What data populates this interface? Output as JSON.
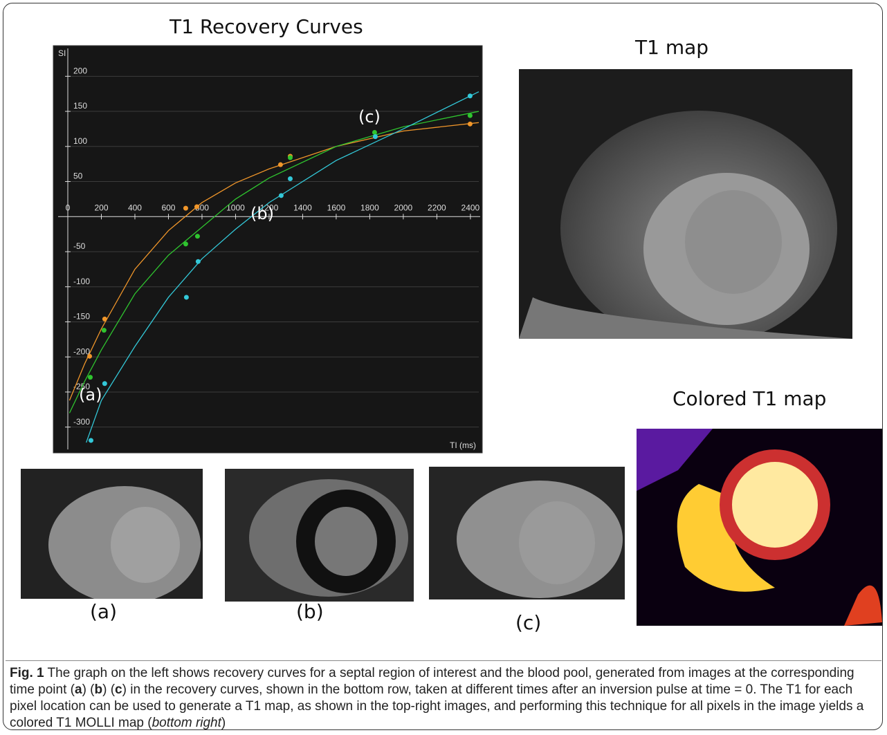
{
  "chart_data": {
    "type": "scatter",
    "title": "T1 Recovery Curves",
    "y_label": "SI",
    "x_label": "TI (ms)",
    "xlim": [
      0,
      2450
    ],
    "ylim": [
      -322,
      222
    ],
    "xticks": [
      0,
      200,
      400,
      600,
      800,
      1000,
      1200,
      1400,
      1600,
      1800,
      2000,
      2200,
      2400
    ],
    "yticks": [
      -300,
      -250,
      -200,
      -150,
      -100,
      -50,
      50,
      100,
      150,
      200
    ],
    "grid": true,
    "annotations": [
      "(a)",
      "(b)",
      "(c)"
    ],
    "series": [
      {
        "color": "#f0962a",
        "x": [
          130,
          220,
          703,
          769,
          1268,
          1326,
          2398
        ],
        "values": [
          -199,
          -146,
          12,
          14,
          74,
          86,
          132
        ],
        "fit_x": [
          10,
          100,
          200,
          400,
          600,
          800,
          1000,
          1200,
          1600,
          2000,
          2450
        ],
        "fit_values": [
          -262,
          -210,
          -160,
          -75,
          -20,
          20,
          48,
          68,
          100,
          122,
          134
        ]
      },
      {
        "color": "#2fc42f",
        "x": [
          134,
          216,
          703,
          773,
          1326,
          1829,
          2398
        ],
        "values": [
          -229,
          -162,
          -39,
          -28,
          84,
          120,
          144
        ],
        "fit_x": [
          10,
          100,
          200,
          400,
          600,
          800,
          1000,
          1200,
          1600,
          2000,
          2450
        ],
        "fit_values": [
          -280,
          -235,
          -190,
          -110,
          -55,
          -15,
          25,
          55,
          100,
          128,
          150
        ]
      },
      {
        "color": "#33c8d8",
        "x": [
          138,
          220,
          707,
          777,
          1272,
          1326,
          1833,
          2398
        ],
        "values": [
          -319,
          -238,
          -115,
          -64,
          30,
          54,
          114,
          172
        ],
        "fit_x": [
          110,
          200,
          400,
          600,
          800,
          1000,
          1200,
          1600,
          2000,
          2450
        ],
        "fit_values": [
          -322,
          -262,
          -185,
          -115,
          -60,
          -18,
          20,
          80,
          125,
          178
        ]
      }
    ]
  },
  "labels": {
    "t1_map": "T1 map",
    "colored_map": "Colored T1 map",
    "a": "(a)",
    "b": "(b)",
    "c": "(c)"
  },
  "caption": [
    {
      "text": "Fig. 1",
      "style": "bold"
    },
    {
      "text": " The graph on the left shows recovery curves for a septal region of interest and the blood pool, generated from images at the corresponding time point (",
      "style": "normal"
    },
    {
      "text": "a",
      "style": "bold"
    },
    {
      "text": ") (",
      "style": "normal"
    },
    {
      "text": "b",
      "style": "bold"
    },
    {
      "text": ") (",
      "style": "normal"
    },
    {
      "text": "c",
      "style": "bold"
    },
    {
      "text": ") in the recovery curves, shown in the bottom row, taken at different times after an inversion pulse at time = 0. The T1 for each pixel location can be used to generate a T1 map, as shown in the top-right images, and performing this technique for all pixels in the image yields a colored T1 MOLLI map (",
      "style": "normal"
    },
    {
      "text": "bottom right",
      "style": "italic"
    },
    {
      "text": ")",
      "style": "normal"
    }
  ]
}
